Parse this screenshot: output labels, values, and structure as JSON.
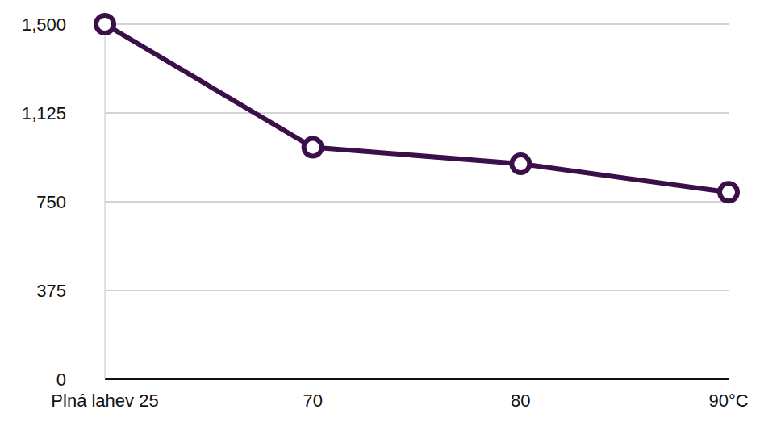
{
  "chart_data": {
    "type": "line",
    "categories": [
      "Plná lahev 25",
      "70",
      "80",
      "90°C"
    ],
    "values": [
      1500,
      980,
      910,
      790
    ],
    "color": "#3b0f4a",
    "marker": "circle",
    "ylim": [
      0,
      1500
    ],
    "yticks": [
      0,
      375,
      750,
      {
        "value": 1125,
        "label": "1,125"
      },
      {
        "value": 1500,
        "label": "1,500"
      }
    ],
    "grid": true
  }
}
